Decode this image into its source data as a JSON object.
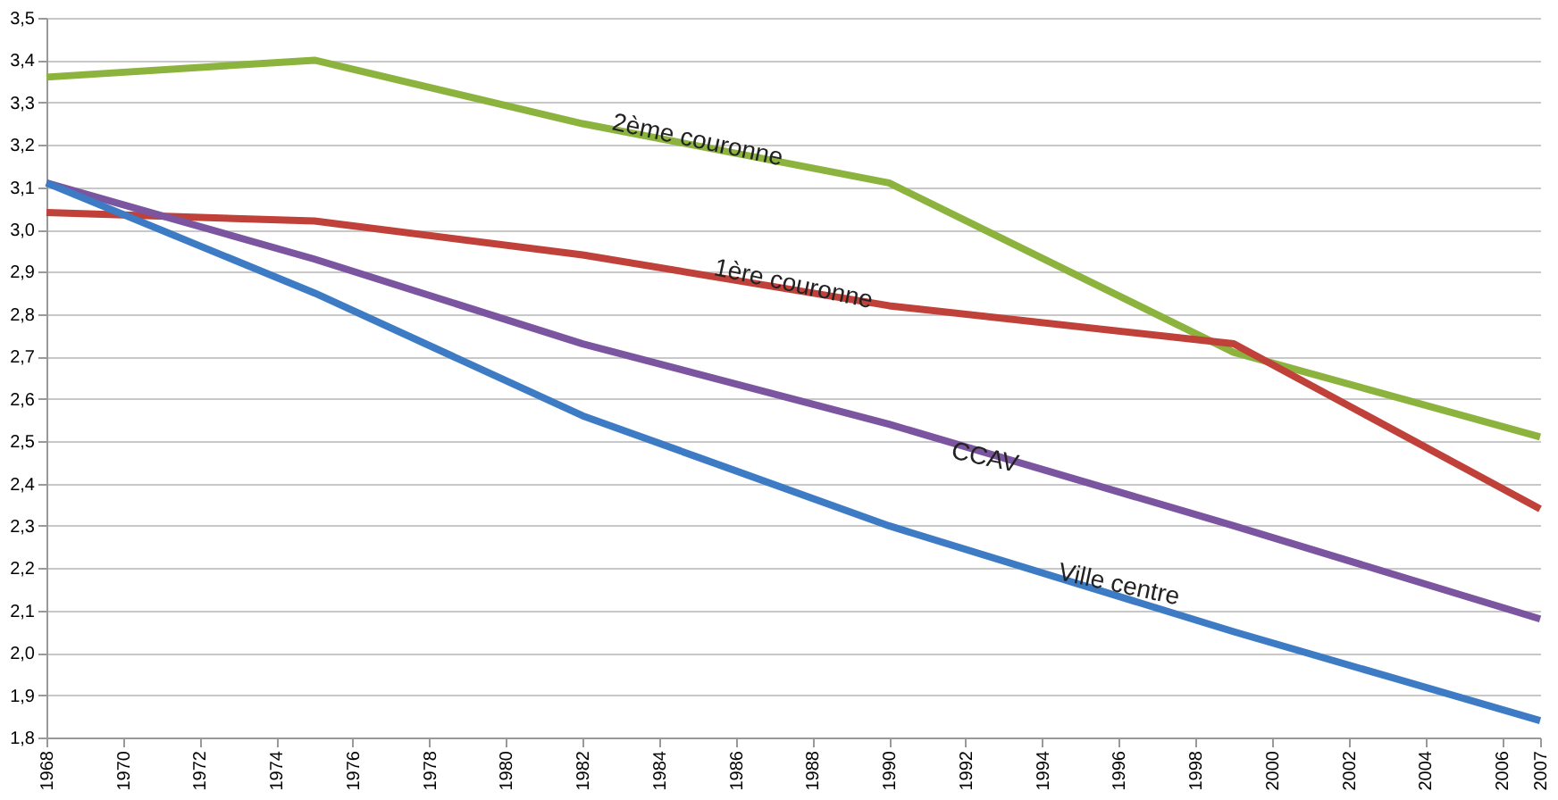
{
  "chart_data": {
    "type": "line",
    "x": [
      1968,
      1975,
      1982,
      1990,
      1999,
      2007
    ],
    "series": [
      {
        "color": "#8db33f",
        "values": [
          3.36,
          3.4,
          3.25,
          3.11,
          2.71,
          2.51
        ]
      },
      {
        "color": "#c0403a",
        "values": [
          3.04,
          3.02,
          2.94,
          2.82,
          2.73,
          2.34
        ]
      },
      {
        "color": "#7b55a0",
        "values": [
          3.11,
          2.93,
          2.73,
          2.54,
          2.3,
          2.08
        ]
      },
      {
        "color": "#3d7cc4",
        "values": [
          3.11,
          2.85,
          2.56,
          2.3,
          2.05,
          1.84
        ]
      }
    ],
    "xlim": [
      1968,
      2007
    ],
    "xticks": [
      1968,
      1970,
      1972,
      1974,
      1976,
      1978,
      1980,
      1982,
      1984,
      1986,
      1988,
      1990,
      1992,
      1994,
      1996,
      1998,
      2000,
      2002,
      2004,
      2006,
      2007
    ],
    "ylim": [
      1.8,
      3.5
    ],
    "yticks": [
      {
        "value": 1.8,
        "label": "1,8"
      },
      {
        "value": 1.9,
        "label": "1,9"
      },
      {
        "value": 2.0,
        "label": "2,0"
      },
      {
        "value": 2.1,
        "label": "2,1"
      },
      {
        "value": 2.2,
        "label": "2,2"
      },
      {
        "value": 2.3,
        "label": "2,3"
      },
      {
        "value": 2.4,
        "label": "2,4"
      },
      {
        "value": 2.5,
        "label": "2,5"
      },
      {
        "value": 2.6,
        "label": "2,6"
      },
      {
        "value": 2.7,
        "label": "2,7"
      },
      {
        "value": 2.8,
        "label": "2,8"
      },
      {
        "value": 2.9,
        "label": "2,9"
      },
      {
        "value": 3.0,
        "label": "3,0"
      },
      {
        "value": 3.1,
        "label": "3,1"
      },
      {
        "value": 3.2,
        "label": "3,2"
      },
      {
        "value": 3.3,
        "label": "3,3"
      },
      {
        "value": 3.4,
        "label": "3,4"
      },
      {
        "value": 3.5,
        "label": "3,5"
      }
    ],
    "annotations": [
      {
        "text": "2ème couronne",
        "x": 1985,
        "y": 3.21
      },
      {
        "text": "1ère couronne",
        "x": 1987.5,
        "y": 2.87
      },
      {
        "text": "CCAV",
        "x": 1992.5,
        "y": 2.46
      },
      {
        "text": "Ville centre",
        "x": 1996,
        "y": 2.16
      }
    ],
    "grid": "y",
    "line_style": "solid",
    "marker": "none"
  }
}
